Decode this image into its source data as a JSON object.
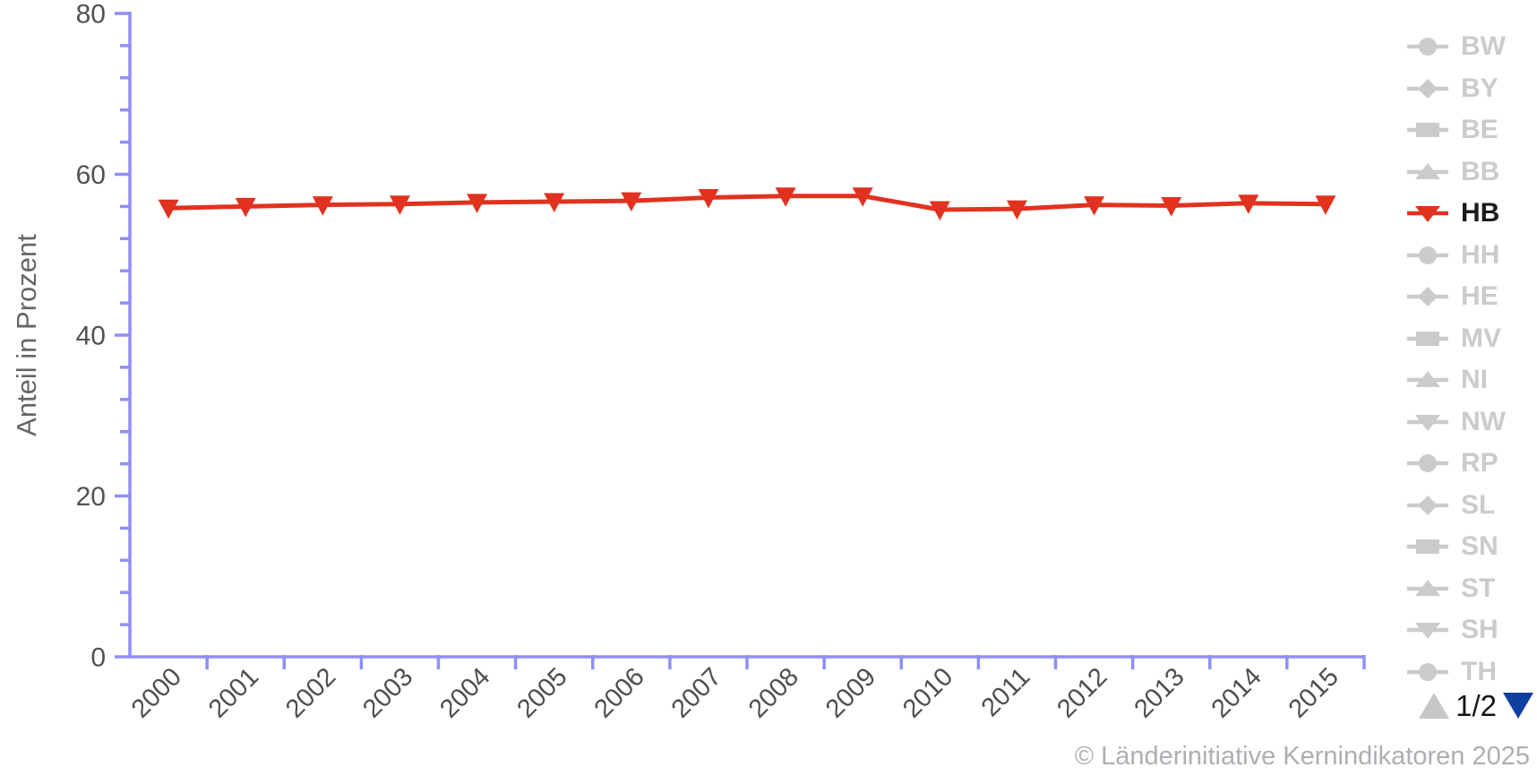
{
  "chart_data": {
    "type": "line",
    "title": "",
    "xlabel": "",
    "ylabel": "Anteil in Prozent",
    "ylim": [
      0,
      80
    ],
    "y_major_ticks": [
      0,
      20,
      40,
      60,
      80
    ],
    "y_minor_step": 4,
    "grid": false,
    "legend_position": "right",
    "categories": [
      "2000",
      "2001",
      "2002",
      "2003",
      "2004",
      "2005",
      "2006",
      "2007",
      "2008",
      "2009",
      "2010",
      "2011",
      "2012",
      "2013",
      "2014",
      "2015"
    ],
    "series": [
      {
        "name": "HB",
        "marker": "triangle-down",
        "color": "#e1321f",
        "values": [
          55.8,
          56.0,
          56.2,
          56.3,
          56.5,
          56.6,
          56.7,
          57.1,
          57.3,
          57.3,
          55.6,
          55.7,
          56.2,
          56.1,
          56.4,
          56.3
        ]
      }
    ]
  },
  "legend": {
    "items": [
      {
        "label": "BW",
        "marker": "circle",
        "active": false
      },
      {
        "label": "BY",
        "marker": "diamond",
        "active": false
      },
      {
        "label": "BE",
        "marker": "square",
        "active": false
      },
      {
        "label": "BB",
        "marker": "triangle-up",
        "active": false
      },
      {
        "label": "HB",
        "marker": "triangle-down",
        "active": true
      },
      {
        "label": "HH",
        "marker": "circle",
        "active": false
      },
      {
        "label": "HE",
        "marker": "diamond",
        "active": false
      },
      {
        "label": "MV",
        "marker": "square",
        "active": false
      },
      {
        "label": "NI",
        "marker": "triangle-up",
        "active": false
      },
      {
        "label": "NW",
        "marker": "triangle-down",
        "active": false
      },
      {
        "label": "RP",
        "marker": "circle",
        "active": false
      },
      {
        "label": "SL",
        "marker": "diamond",
        "active": false
      },
      {
        "label": "SN",
        "marker": "square",
        "active": false
      },
      {
        "label": "ST",
        "marker": "triangle-up",
        "active": false
      },
      {
        "label": "SH",
        "marker": "triangle-down",
        "active": false
      },
      {
        "label": "TH",
        "marker": "circle",
        "active": false,
        "clipped": true
      }
    ],
    "pagination": {
      "label": "1/2",
      "page": 1,
      "pages": 2,
      "up_enabled": false,
      "down_enabled": true
    }
  },
  "footer": {
    "copyright": "© Länderinitiative Kernindikatoren 2025"
  },
  "colors": {
    "background": "#ffffff",
    "axis": "#8f8ff9",
    "tick_label": "#525252",
    "axis_title": "#666666",
    "series_active": "#e1321f",
    "legend_inactive": "#cbcbcb",
    "legend_active_text": "#1c1c1c",
    "pagination_up": "#c6c6c6",
    "pagination_down": "#0f3f9f",
    "copyright": "#aeaeb4"
  }
}
